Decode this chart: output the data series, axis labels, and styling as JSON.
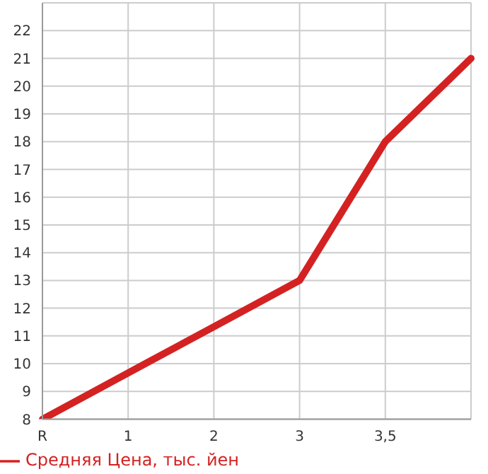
{
  "chart_data": {
    "type": "line",
    "categories": [
      "R",
      "1",
      "2",
      "3",
      "3,5",
      null
    ],
    "series": [
      {
        "name": "Средняя Цена, тыс. йен",
        "color": "#d42222",
        "values": [
          8,
          9.67,
          11.33,
          13,
          18,
          21
        ]
      }
    ],
    "ylim": [
      8,
      23
    ],
    "yticks": [
      8,
      9,
      10,
      11,
      12,
      13,
      14,
      15,
      16,
      17,
      18,
      19,
      20,
      21,
      22
    ],
    "grid": true,
    "legend": "bottom left",
    "marker": "none"
  }
}
